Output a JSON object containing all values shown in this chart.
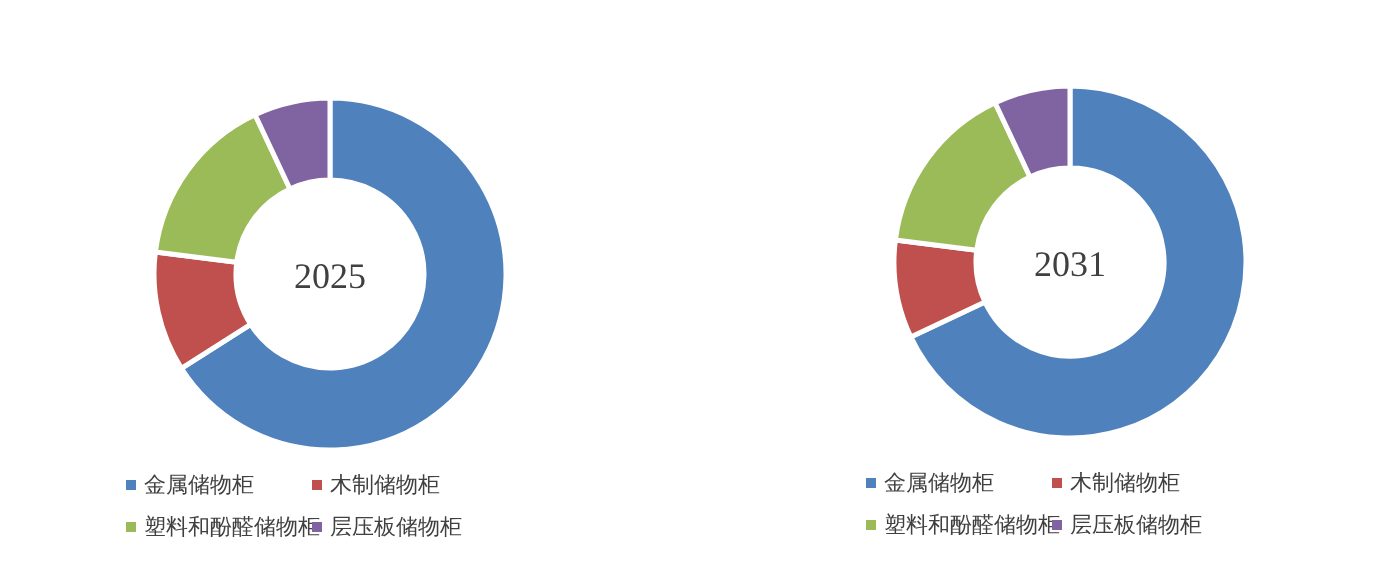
{
  "chart_data": [
    {
      "type": "donut",
      "title": "2025",
      "categories": [
        "金属储物柜",
        "木制储物柜",
        "塑料和酚醛储物柜",
        "层压板储物柜"
      ],
      "values": [
        66,
        11,
        16,
        7
      ],
      "colors": [
        "#4f81bd",
        "#c0504d",
        "#9bbb59",
        "#8064a2"
      ],
      "legend": "bottom"
    },
    {
      "type": "donut",
      "title": "2031",
      "categories": [
        "金属储物柜",
        "木制储物柜",
        "塑料和酚醛储物柜",
        "层压板储物柜"
      ],
      "values": [
        68,
        9,
        16,
        7
      ],
      "colors": [
        "#4f81bd",
        "#c0504d",
        "#9bbb59",
        "#8064a2"
      ],
      "legend": "bottom"
    }
  ]
}
